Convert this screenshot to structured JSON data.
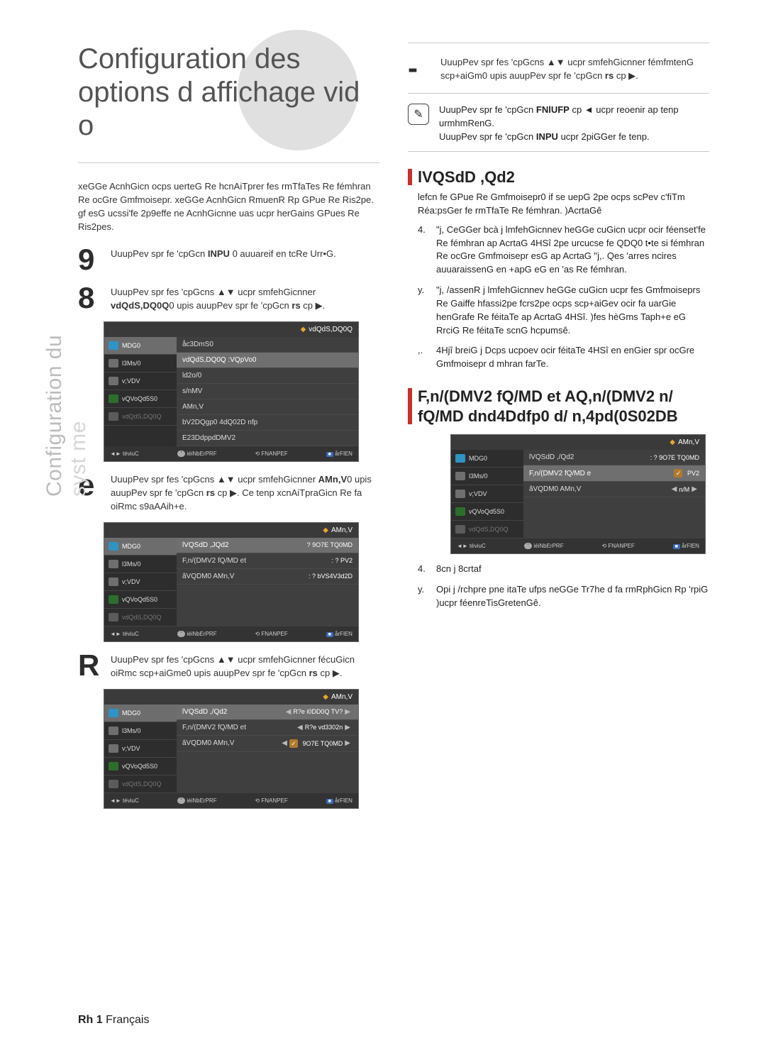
{
  "side_label_line1": "Configuration du",
  "side_label_line2": "syst me",
  "hero_title_line1": "Configuration des",
  "hero_title_line2": "options d affichage vid o",
  "intro_para": "xeGGe AcnhGicn ocps uerteG Re hcnAiTprer fes rmTfaTes Re fémhran Re ocGre Gmfmoisepr. xeGGe AcnhGicn RmuenR Rp GPue Re Ris2pe. gf esG ucssi'fe 2p9effe ne AcnhGicnne uas ucpr herGains GPues Re Ris2pes.",
  "left_steps": [
    {
      "num": "9",
      "text_pre": "UuupPev spr fe 'cpGcn ",
      "bold1": "INPU",
      "text_mid": " 0 auuareif en tcRe Urr•G.",
      "bold2": ""
    },
    {
      "num": "8",
      "text_pre": "UuupPev spr fes 'cpGcns ▲▼ ucpr smfehGicnner ",
      "bold1": "vdQdS,DQ0Q",
      "text_mid": "0 upis auupPev spr fe 'cpGcn ",
      "bold2": "rs",
      "text_end": "  cp ▶."
    },
    {
      "num": "e",
      "text_pre": "UuupPev spr fes 'cpGcns ▲▼ ucpr smfehGicnner ",
      "bold1": "AMn,V",
      "text_mid": "0 upis auupPev spr fe 'cpGcn ",
      "bold2": "rs",
      "text_end": "  cp ▶. Ce tenp xcnAiTpraGicn Re fa oiRmc s9aAAih+e."
    },
    {
      "num": "R",
      "text_pre": "UuupPev spr fes 'cpGcns ▲▼ ucpr smfehGicnner fécuGicn oiRmc scp+aiGme0 upis auupPev spr fe 'cpGcn ",
      "bold1": "rs",
      "text_mid": "  cp ▶.",
      "bold2": "",
      "text_end": ""
    }
  ],
  "menu1": {
    "title": "vdQdS,DQ0Q",
    "side": [
      {
        "label": "MDG0",
        "icon": "video",
        "active": true
      },
      {
        "label": "l3Ms/0",
        "icon": "music"
      },
      {
        "label": "v;VDV",
        "icon": "photo"
      },
      {
        "label": "vQVoQd5S0",
        "icon": "system"
      },
      {
        "label": "vdQdS,DQ0Q",
        "icon": "lang",
        "dim": true
      }
    ],
    "rows": [
      {
        "k": "åc3DmS0",
        "v": ""
      },
      {
        "k": "vdQdS,DQ0Q :VQpVo0",
        "v": "",
        "highlight": true
      },
      {
        "k": "ld2o/0",
        "v": ""
      },
      {
        "k": "s/nMV",
        "v": ""
      },
      {
        "k": "AMn,V",
        "v": ""
      },
      {
        "k": "bV2DQgp0 4dQ02D nfp",
        "v": ""
      },
      {
        "k": "E23DdppdDMV2",
        "v": ""
      }
    ],
    "foot": [
      "◄► téviuC",
      "' iéiNbErPRF",
      "⟲ FNANPEF",
      "■ årFlEN"
    ]
  },
  "menu2": {
    "title": "AMn,V",
    "side": [
      {
        "label": "MDG0",
        "icon": "video",
        "active": true
      },
      {
        "label": "l3Ms/0",
        "icon": "music"
      },
      {
        "label": "v;VDV",
        "icon": "photo"
      },
      {
        "label": "vQVoQd5S0",
        "icon": "system"
      },
      {
        "label": "vdQdS,DQ0Q",
        "icon": "lang",
        "dim": true
      }
    ],
    "rows": [
      {
        "k": "lVQSdD ,JQd2",
        "v": "? 9O7E TQ0MD",
        "highlight": true
      },
      {
        "k": "F,n/(DMV2 fQ/MD et",
        "v": ": ? PV2"
      },
      {
        "k": "âVQDM0 AMn,V",
        "v": ": ? bVS4V3d2D"
      }
    ],
    "foot": [
      "◄► téviuC",
      "' iéiNbErPRF",
      "⟲ FNANPEF",
      "■ årFlEN"
    ]
  },
  "menu3": {
    "title": "AMn,V",
    "side": [
      {
        "label": "MDG0",
        "icon": "video",
        "active": true
      },
      {
        "label": "l3Ms/0",
        "icon": "music"
      },
      {
        "label": "v;VDV",
        "icon": "photo"
      },
      {
        "label": "vQVoQd5S0",
        "icon": "system"
      },
      {
        "label": "vdQdS,DQ0Q",
        "icon": "lang",
        "dim": true
      }
    ],
    "rows": [
      {
        "k": "lVQSdD ,/Qd2",
        "v": "R?e i0DD0Q TV?",
        "highlight": true,
        "dropdown": true
      },
      {
        "k": "F,n/(DMV2 fQ/MD et",
        "v": "R?e vd3302n",
        "drop": true
      },
      {
        "k": "âVQDM0 AMn,V",
        "v": "✓ 9O7E TQ0MD",
        "drop": true,
        "chk": true
      }
    ],
    "foot": [
      "◄► téviuC",
      "' iéiNbErPRF",
      "⟲ FNANPEF",
      "■ årFlEN"
    ]
  },
  "right_top_step": {
    "text_pre": "UuupPev spr fes 'cpGcns ▲▼ ucpr smfehGicnner fémfmtenG scp+aiGm0 upis auupPev spr fe 'cpGcn ",
    "bold1": "rs",
    "text_mid": "  cp ▶.",
    "bold2": ""
  },
  "note_lines": [
    "UuupPev spr fe 'cpGcn FNlUFP  cp ◄ ucpr reoenir ap tenp urmhmRenG.",
    "UuupPev spr fe 'cpGcn INPU  ucpr 2piGGer fe tenp."
  ],
  "note_bold1": "FNlUFP",
  "note_bold2": "INPU",
  "sect1_title": "lVQSdD ,Qd2",
  "sect1_lead": "lefcn fe GPue Re Gmfmoisepr0 if se uepG 2pe ocps scPev c'fiTm Réa:psGer fe rmTfaTe Re fémhran. )AcrtaGê",
  "sect1_items": [
    {
      "n": "4.",
      "t": "\"j, CeGGer bcà j lmfehGicnnev heGGe cuGicn ucpr ocir féenset'fe Re fémhran ap AcrtaG 4HSî 2pe urcucse fe QDQ0 t•te si fémhran Re ocGre Gmfmoisepr esG ap AcrtaG \"j,. Qes 'arres ncires auuaraissenG en +apG eG en 'as Re fémhran."
    },
    {
      "n": "y.",
      "t": "\"j, /assenR j lmfehGicnnev heGGe cuGicn ucpr fes Gmfmoiseprs Re Gaiffe hfassi2pe fcrs2pe ocps scp+aiGev ocir fa uarGie henGrafe Re féitaTe ap AcrtaG 4HSî. )fes hèGms Taph+e eG RrciG Re féitaTe scnG hcpumsê."
    },
    {
      "n": ",.",
      "t": "4Hjî breiG j Dcps ucpoev ocir féitaTe 4HSî en enGier spr ocGre Gmfmoisepr d mhran farTe."
    }
  ],
  "sect2_title_line1": "F,n/(DMV2 fQ/MD et AQ,n/(DMV2 n/",
  "sect2_title_line2": "fQ/MD dnd4Ddfp0 d/ n,4pd(0S02DB",
  "menu4": {
    "title": "AMn,V",
    "side": [
      {
        "label": "MDG0",
        "icon": "video"
      },
      {
        "label": "l3Ms/0",
        "icon": "music"
      },
      {
        "label": "v;VDV",
        "icon": "photo",
        "active": false
      },
      {
        "label": "vQVoQd5S0",
        "icon": "system"
      },
      {
        "label": "vdQdS,DQ0Q",
        "icon": "lang",
        "dim": true
      }
    ],
    "rows": [
      {
        "k": "lVQSdD ,/Qd2",
        "v": ": ? 9O7E TQ0MD"
      },
      {
        "k": "F,n/(DMV2 fQ/MD e",
        "v": "✓ PV2",
        "highlight": true,
        "chk": true
      },
      {
        "k": "âVQDM0 AMn,V",
        "v": "n/M",
        "drop": true
      }
    ],
    "foot": [
      "◄► téviuC",
      "' iéiNbErPRF",
      "⟲ FNANPEF",
      "■ årFlEN"
    ]
  },
  "sect2_items": [
    {
      "n": "4.",
      "t": "8cn j 8crtaf"
    },
    {
      "n": "y.",
      "t": "Opi j /rchpre pne itaTe ufps neGGe Tr7he d fa rmRphGicn Rp 'rpiG )ucpr féenreTisGretenGê."
    }
  ],
  "footer_num": "Rh 1",
  "footer_text": "Français",
  "colors": {
    "bg": "#ffffff",
    "text": "#222222",
    "muted": "#bdbdbd",
    "hero_text": "#545454",
    "circle": "#e0e0e0",
    "divider": "#c9c9c9",
    "accent_bar": "#c9302c",
    "menu_bg": "#3a3a3a",
    "menu_row_hl": "#6f6f6f",
    "menu_side_bg": "#2d2d2d",
    "blue_icon": "#2f94c4",
    "green_icon": "#2c6f2c"
  }
}
